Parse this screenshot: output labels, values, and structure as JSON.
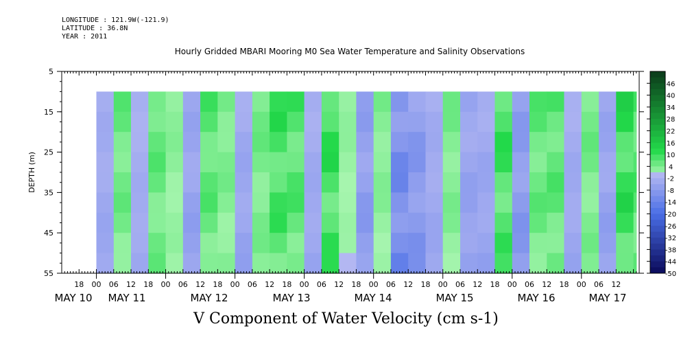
{
  "header": {
    "longitude": "LONGITUDE : 121.9W(-121.9)",
    "latitude": "LATITUDE : 36.8N",
    "year": "YEAR : 2011",
    "title": "Hourly Gridded MBARI Mooring M0 Sea Water Temperature and Salinity Observations"
  },
  "caption": "V Component of Water Velocity (cm s-1)",
  "chart_data": {
    "type": "heatmap",
    "title": "Hourly Gridded MBARI Mooring M0 Sea Water Temperature and Salinity Observations",
    "xlabel": "",
    "ylabel": "DEPTH (m)",
    "variable": "V Component of Water Velocity (cm s-1)",
    "y_range": [
      5,
      55
    ],
    "y_ticks": [
      5,
      15,
      25,
      35,
      45,
      55
    ],
    "data_depth_range": [
      10,
      55
    ],
    "x_range": [
      "2011-05-09T12:00",
      "2011-05-17T20:00"
    ],
    "data_time_range": [
      "2011-05-10T00:00",
      "2011-05-17T19:00"
    ],
    "hour_tick_labels": [
      "18",
      "00",
      "06",
      "12",
      "18",
      "00",
      "06",
      "12",
      "18",
      "00",
      "06",
      "12",
      "18",
      "00",
      "06",
      "12",
      "18",
      "00",
      "06",
      "12",
      "18",
      "00",
      "06",
      "12",
      "18",
      "00",
      "06",
      "12",
      "18",
      "00",
      "06",
      "12"
    ],
    "day_labels": [
      "MAY 10",
      "MAY 11",
      "MAY 12",
      "MAY 13",
      "MAY 14",
      "MAY 15",
      "MAY 16",
      "MAY 17"
    ],
    "colorbar": {
      "labels": [
        "46",
        "40",
        "34",
        "28",
        "22",
        "16",
        "10",
        "4",
        "-2",
        "-8",
        "-14",
        "-20",
        "-26",
        "-32",
        "-38",
        "-44",
        "-50"
      ],
      "range": [
        -50,
        52
      ],
      "step": 3
    },
    "pattern": {
      "description_values": "approximate v-velocity bands (cm s-1) by time",
      "columns": [
        {
          "time": "2011-05-10T00:00",
          "v": -4
        },
        {
          "time": "2011-05-10T06:00",
          "v": 8
        },
        {
          "time": "2011-05-10T12:00",
          "v": -3
        },
        {
          "time": "2011-05-10T18:00",
          "v": 9
        },
        {
          "time": "2011-05-11T00:00",
          "v": 4
        },
        {
          "time": "2011-05-11T06:00",
          "v": -6
        },
        {
          "time": "2011-05-11T12:00",
          "v": 10
        },
        {
          "time": "2011-05-11T18:00",
          "v": 6
        },
        {
          "time": "2011-05-12T00:00",
          "v": -5
        },
        {
          "time": "2011-05-12T06:00",
          "v": 7
        },
        {
          "time": "2011-05-12T12:00",
          "v": 13
        },
        {
          "time": "2011-05-12T18:00",
          "v": 11
        },
        {
          "time": "2011-05-13T00:00",
          "v": -4
        },
        {
          "time": "2011-05-13T06:00",
          "v": 14
        },
        {
          "time": "2011-05-13T12:00",
          "v": 3
        },
        {
          "time": "2011-05-13T18:00",
          "v": -8
        },
        {
          "time": "2011-05-14T00:00",
          "v": 5
        },
        {
          "time": "2011-05-14T06:00",
          "v": -14
        },
        {
          "time": "2011-05-14T12:00",
          "v": -10
        },
        {
          "time": "2011-05-14T18:00",
          "v": -4
        },
        {
          "time": "2011-05-15T00:00",
          "v": 6
        },
        {
          "time": "2011-05-15T06:00",
          "v": -6
        },
        {
          "time": "2011-05-15T12:00",
          "v": -5
        },
        {
          "time": "2011-05-15T18:00",
          "v": 13
        },
        {
          "time": "2011-05-16T00:00",
          "v": -9
        },
        {
          "time": "2011-05-16T06:00",
          "v": 9
        },
        {
          "time": "2011-05-16T12:00",
          "v": 10
        },
        {
          "time": "2011-05-16T18:00",
          "v": -4
        },
        {
          "time": "2011-05-17T00:00",
          "v": 7
        },
        {
          "time": "2011-05-17T06:00",
          "v": -6
        },
        {
          "time": "2011-05-17T12:00",
          "v": 15
        },
        {
          "time": "2011-05-17T18:00",
          "v": 11
        }
      ]
    },
    "colors": {
      "positive_high": "#0b3a1a",
      "positive_mid": "#22d94a",
      "positive_low": "#a8f5b0",
      "negative_low": "#b4b8f2",
      "negative_mid": "#4a6ee6",
      "negative_high": "#0a0a5a"
    }
  }
}
